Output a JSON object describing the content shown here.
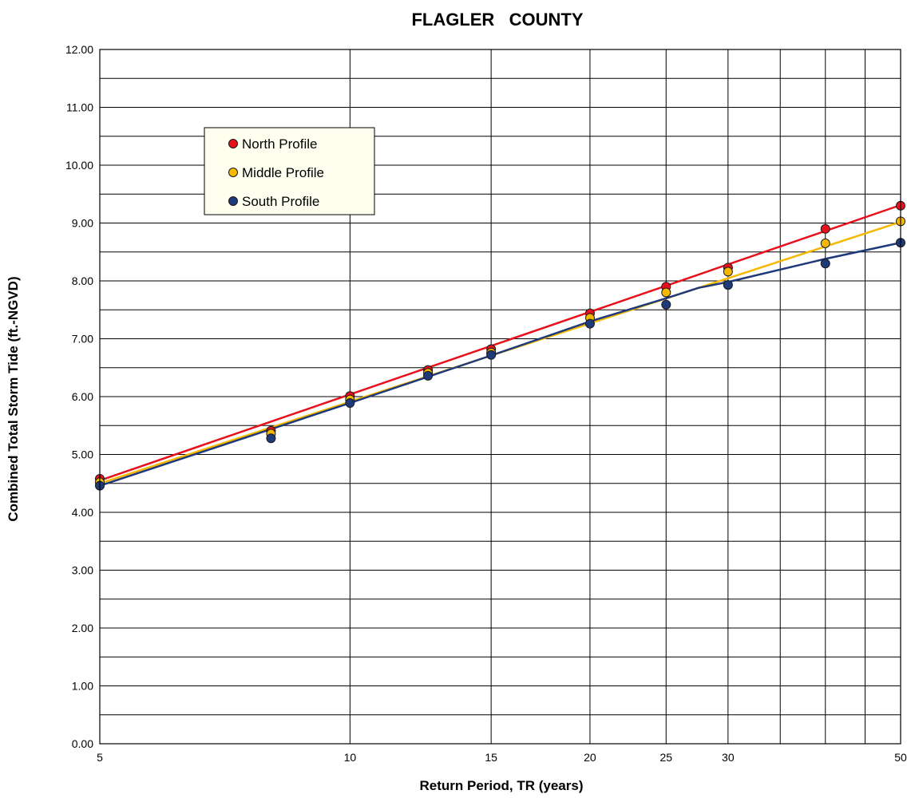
{
  "chart_data": {
    "type": "line",
    "title": "FLAGLER   COUNTY",
    "xlabel": "Return Period, TR (years)",
    "ylabel": "Combined Total Storm Tide (ft.-NGVD)",
    "x_scale": "log-extreme-value",
    "xlim": [
      5,
      50
    ],
    "ylim": [
      0,
      12
    ],
    "x_tick_labels": [
      "5",
      "10",
      "15",
      "20",
      "25",
      "30",
      "50"
    ],
    "x_ticks": [
      5,
      10,
      15,
      20,
      25,
      30,
      50
    ],
    "x_minor_gridlines": [
      35,
      40,
      45
    ],
    "y_tick_labels": [
      "0.00",
      "1.00",
      "2.00",
      "3.00",
      "4.00",
      "5.00",
      "6.00",
      "7.00",
      "8.00",
      "9.00",
      "10.00",
      "11.00",
      "12.00"
    ],
    "y_minor_step": 0.5,
    "grid": true,
    "legend_position": "top-left",
    "series": [
      {
        "name": "North Profile",
        "color": "#e8101c",
        "points": [
          [
            5,
            4.58
          ],
          [
            8,
            5.41
          ],
          [
            10,
            6.01
          ],
          [
            12.5,
            6.46
          ],
          [
            15,
            6.82
          ],
          [
            20,
            7.44
          ],
          [
            25,
            7.9
          ],
          [
            30,
            8.23
          ],
          [
            40,
            8.9
          ],
          [
            50,
            9.3
          ]
        ],
        "fit": [
          [
            5,
            4.55
          ],
          [
            50,
            9.31
          ]
        ]
      },
      {
        "name": "Middle Profile",
        "color": "#f5b800",
        "points": [
          [
            5,
            4.52
          ],
          [
            8,
            5.36
          ],
          [
            10,
            5.95
          ],
          [
            12.5,
            6.41
          ],
          [
            15,
            6.76
          ],
          [
            20,
            7.36
          ],
          [
            25,
            7.8
          ],
          [
            30,
            8.16
          ],
          [
            40,
            8.65
          ],
          [
            50,
            9.03
          ]
        ],
        "fit": [
          [
            5,
            4.5
          ],
          [
            50,
            9.02
          ]
        ]
      },
      {
        "name": "South Profile",
        "color": "#1e3a7a",
        "points": [
          [
            5,
            4.46
          ],
          [
            8,
            5.28
          ],
          [
            10,
            5.89
          ],
          [
            12.5,
            6.36
          ],
          [
            15,
            6.72
          ],
          [
            20,
            7.26
          ],
          [
            25,
            7.59
          ],
          [
            30,
            7.93
          ],
          [
            40,
            8.3
          ],
          [
            50,
            8.66
          ]
        ],
        "fit": [
          [
            5,
            4.46
          ],
          [
            10,
            5.89
          ],
          [
            15,
            6.71
          ],
          [
            20,
            7.3
          ],
          [
            25,
            7.7
          ],
          [
            27.5,
            7.88
          ],
          [
            30,
            7.98
          ],
          [
            40,
            8.38
          ],
          [
            50,
            8.66
          ]
        ]
      }
    ]
  }
}
